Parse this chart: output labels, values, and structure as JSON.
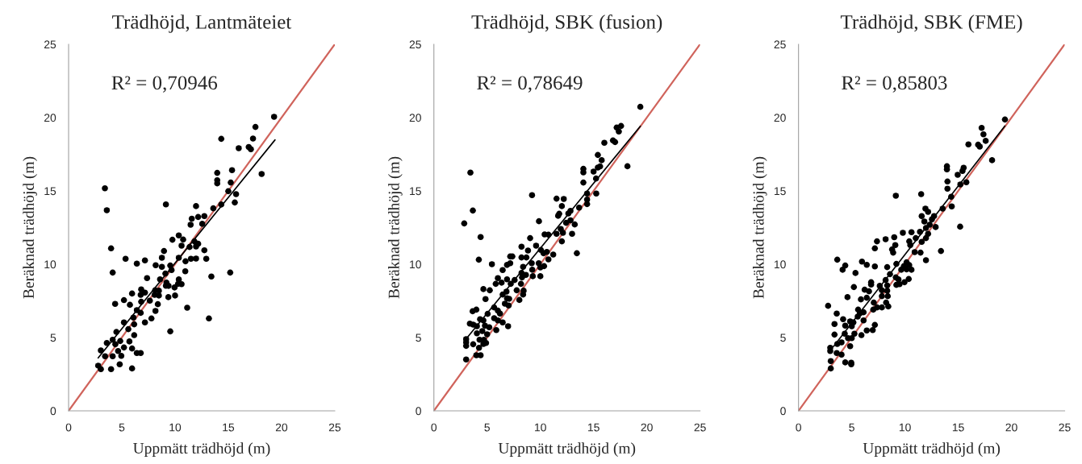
{
  "chart_data": [
    {
      "type": "scatter",
      "title": "Trädhöjd, Lantmäteiet",
      "xlabel": "Uppmätt trädhöjd (m)",
      "ylabel": "Beräknad trädhöjd (m)",
      "annotations": [
        "R² = 0,70946"
      ],
      "xlim": [
        0,
        25
      ],
      "ylim": [
        0,
        25
      ],
      "xticks": [
        0,
        5,
        10,
        15,
        20,
        25
      ],
      "yticks": [
        0,
        5,
        10,
        15,
        20,
        25
      ],
      "grid": false,
      "legend": false,
      "series": [
        {
          "marker": "circle",
          "color": "#000000",
          "x": [
            19.3,
            17.55,
            14.34,
            17.32,
            15.98,
            16.92,
            17.12,
            18.13,
            13.96,
            13.96,
            13.96,
            15.35,
            15.23,
            15.0,
            15.73,
            15.61,
            14.34,
            13.59,
            3.41,
            3.59,
            9.14,
            11.97,
            11.57,
            12.17,
            12.75,
            11.46,
            12.55,
            9.75,
            10.35,
            10.76,
            10.61,
            11.36,
            11.97,
            12.17,
            11.82,
            12.75,
            3.99,
            8.96,
            8.76,
            10.35,
            11.49,
            11.97,
            12.93,
            5.35,
            6.41,
            7.17,
            8.18,
            8.76,
            9.55,
            10.98,
            10.96,
            9.67,
            9.09,
            4.14,
            7.37,
            8.59,
            13.41,
            15.18,
            9.19,
            10.35,
            10.28,
            10.61,
            9.14,
            9.39,
            9.95,
            10.0,
            6.82,
            7.17,
            8.13,
            8.48,
            8.08,
            8.48,
            6.77,
            5.96,
            9.37,
            7.63,
            8.38,
            5.2,
            5.76,
            4.37,
            6.82,
            11.14,
            6.41,
            6.77,
            8.16,
            6.09,
            7.17,
            7.78,
            13.18,
            5.2,
            5.61,
            6.16,
            4.49,
            9.55,
            4.14,
            3.59,
            4.39,
            4.85,
            5.71,
            6.16,
            3.03,
            4.65,
            5.2,
            5.96,
            6.41,
            6.77,
            3.43,
            4.14,
            4.95,
            2.78,
            3.03,
            3.99,
            4.8,
            5.96
          ],
          "values": [
            20.05,
            19.36,
            18.55,
            18.57,
            17.91,
            17.99,
            17.84,
            16.15,
            16.23,
            15.73,
            15.51,
            16.41,
            15.57,
            14.98,
            14.78,
            14.21,
            14.07,
            13.81,
            15.18,
            13.68,
            14.08,
            13.96,
            13.1,
            13.22,
            13.28,
            12.69,
            12.75,
            11.67,
            11.96,
            11.68,
            11.26,
            11.17,
            11.21,
            11.39,
            11.56,
            10.95,
            11.08,
            10.9,
            10.44,
            10.44,
            10.37,
            10.38,
            10.37,
            10.37,
            10.04,
            10.26,
            9.93,
            9.82,
            9.91,
            10.2,
            9.52,
            9.6,
            9.36,
            9.43,
            9.05,
            8.97,
            9.16,
            9.43,
            8.74,
            8.96,
            8.66,
            8.64,
            8.53,
            8.52,
            8.41,
            7.86,
            8.28,
            8.06,
            8.22,
            8.19,
            7.91,
            7.86,
            7.91,
            8.0,
            7.75,
            7.51,
            7.27,
            7.55,
            7.23,
            7.29,
            7.44,
            7.03,
            6.87,
            6.68,
            6.81,
            6.36,
            6.03,
            6.3,
            6.3,
            6.03,
            5.57,
            5.9,
            5.38,
            5.42,
            4.85,
            4.63,
            4.54,
            4.76,
            4.73,
            5.16,
            4.12,
            4.08,
            4.32,
            4.25,
            3.94,
            3.94,
            3.72,
            3.72,
            3.75,
            3.08,
            2.84,
            2.84,
            3.17,
            2.89
          ]
        },
        {
          "type": "line",
          "color": "#000000",
          "line_style": "solid",
          "x": [
            2.78,
            19.39
          ],
          "values": [
            3.61,
            18.48
          ]
        },
        {
          "type": "line",
          "color": "#d0645c",
          "line_style": "solid",
          "x": [
            0,
            25
          ],
          "values": [
            0,
            25
          ]
        }
      ]
    },
    {
      "type": "scatter",
      "title": "Trädhöjd, SBK (fusion)",
      "xlabel": "Uppmätt trädhöjd (m)",
      "ylabel": "Beräknad trädhöjd (m)",
      "annotations": [
        "R² = 0,78649"
      ],
      "xlim": [
        0,
        25
      ],
      "ylim": [
        0,
        25
      ],
      "xticks": [
        0,
        5,
        10,
        15,
        20,
        25
      ],
      "yticks": [
        0,
        5,
        10,
        15,
        20,
        25
      ],
      "grid": false,
      "legend": false,
      "series": [
        {
          "marker": "circle",
          "color": "#000000",
          "x": [
            19.39,
            17.17,
            17.58,
            17.37,
            16.01,
            16.82,
            17.02,
            18.18,
            15.4,
            15.76,
            15.4,
            15.61,
            15.0,
            14.04,
            14.04,
            14.04,
            15.23,
            15.25,
            14.39,
            14.39,
            14.39,
            13.64,
            3.43,
            3.66,
            2.85,
            4.39,
            4.22,
            9.22,
            11.52,
            12.2,
            12.02,
            11.77,
            11.67,
            12.63,
            12.83,
            12.42,
            12.83,
            13.23,
            9.87,
            10.4,
            10.76,
            11.52,
            11.92,
            12.12,
            12.98,
            12.02,
            13.43,
            9.04,
            8.23,
            8.84,
            9.6,
            10.05,
            10.3,
            10.61,
            11.21,
            10.76,
            8.23,
            8.69,
            7.17,
            7.37,
            7.17,
            6.87,
            5.45,
            8.38,
            9.19,
            9.85,
            10.35,
            10.0,
            9.24,
            8.23,
            8.64,
            9.29,
            10.0,
            8.28,
            6.46,
            6.01,
            6.87,
            5.81,
            6.36,
            7.22,
            7.58,
            8.18,
            4.65,
            5.25,
            6.82,
            7.78,
            8.43,
            6.46,
            8.38,
            4.85,
            6.87,
            7.07,
            8.03,
            6.67,
            5.66,
            7.02,
            3.64,
            3.99,
            5.05,
            6.01,
            6.21,
            4.34,
            4.65,
            5.66,
            6.01,
            6.46,
            3.38,
            3.69,
            4.04,
            4.8,
            5.2,
            5.86,
            6.97,
            4.55,
            4.04,
            5.0,
            3.03,
            3.03,
            3.03,
            3.69,
            4.29,
            4.7,
            4.9,
            4.65,
            4.24,
            3.99,
            4.39,
            3.03
          ],
          "values": [
            20.73,
            19.32,
            19.43,
            19.05,
            18.28,
            18.44,
            18.33,
            16.68,
            17.45,
            17.09,
            16.59,
            16.67,
            16.32,
            16.5,
            16.26,
            15.57,
            15.84,
            14.82,
            14.82,
            14.41,
            14.1,
            13.86,
            16.25,
            13.66,
            12.78,
            11.85,
            10.31,
            14.71,
            14.47,
            14.45,
            13.96,
            13.44,
            13.3,
            13.46,
            13.64,
            12.82,
            12.99,
            12.71,
            12.93,
            12.03,
            12.01,
            12.07,
            12.4,
            12.14,
            12.07,
            11.56,
            10.75,
            11.78,
            11.19,
            10.93,
            11.26,
            10.97,
            10.75,
            10.84,
            10.66,
            10.33,
            10.46,
            10.46,
            10.53,
            10.53,
            10.07,
            9.95,
            10.0,
            9.82,
            10.07,
            10.07,
            9.87,
            9.78,
            9.62,
            9.4,
            9.27,
            9.18,
            9.18,
            9.1,
            9.6,
            9.05,
            8.97,
            8.66,
            8.74,
            8.66,
            8.92,
            8.66,
            8.3,
            8.22,
            8.13,
            8.22,
            8.19,
            7.93,
            7.93,
            7.62,
            7.67,
            7.64,
            7.56,
            7.31,
            7.05,
            7.18,
            6.79,
            6.9,
            6.61,
            6.83,
            6.63,
            6.25,
            6.17,
            6.32,
            6.17,
            6.03,
            5.95,
            5.88,
            5.77,
            5.81,
            5.7,
            5.51,
            5.77,
            5.44,
            5.29,
            5.22,
            4.89,
            4.67,
            4.43,
            4.54,
            4.85,
            4.85,
            4.63,
            4.56,
            4.3,
            3.79,
            3.79,
            3.5
          ]
        },
        {
          "type": "line",
          "color": "#000000",
          "line_style": "solid",
          "x": [
            3.18,
            19.39
          ],
          "values": [
            5.04,
            19.41
          ]
        },
        {
          "type": "line",
          "color": "#d0645c",
          "line_style": "solid",
          "x": [
            0,
            25
          ],
          "values": [
            0,
            25
          ]
        }
      ]
    },
    {
      "type": "scatter",
      "title": "Trädhöjd, SBK (FME)",
      "xlabel": "Uppmätt trädhöjd (m)",
      "ylabel": "Beräknad trädhöjd (m)",
      "annotations": [
        "R² = 0,85803"
      ],
      "xlim": [
        0,
        25
      ],
      "ylim": [
        0,
        25
      ],
      "xticks": [
        0,
        5,
        10,
        15,
        20,
        25
      ],
      "yticks": [
        0,
        5,
        10,
        15,
        20,
        25
      ],
      "grid": false,
      "legend": false,
      "series": [
        {
          "marker": "circle",
          "color": "#000000",
          "x": [
            19.39,
            17.2,
            17.37,
            17.58,
            16.87,
            17.02,
            15.96,
            18.18,
            13.94,
            13.94,
            15.51,
            15.4,
            14.95,
            15.2,
            15.76,
            13.99,
            13.99,
            14.34,
            14.39,
            13.54,
            15.18,
            9.14,
            11.52,
            11.92,
            12.17,
            11.57,
            12.73,
            12.53,
            11.82,
            12.88,
            12.32,
            11.97,
            11.41,
            12.17,
            11.97,
            11.57,
            10.61,
            9.8,
            11.01,
            10.4,
            10.5,
            8.99,
            8.18,
            7.37,
            7.17,
            9.09,
            8.79,
            8.89,
            10.91,
            11.46,
            13.38,
            11.97,
            3.64,
            4.39,
            4.14,
            5.35,
            5.96,
            6.41,
            7.17,
            8.33,
            9.19,
            10.15,
            9.9,
            10.4,
            10.15,
            10.61,
            9.65,
            8.59,
            9.14,
            9.39,
            9.19,
            9.49,
            9.95,
            10.35,
            8.18,
            8.33,
            7.63,
            6.82,
            6.82,
            5.2,
            6.21,
            6.62,
            7.83,
            8.33,
            8.38,
            7.83,
            4.6,
            5.86,
            6.41,
            7.07,
            8.23,
            7.38,
            7.83,
            8.43,
            2.78,
            5.6,
            3.59,
            7.02,
            5.76,
            6.11,
            5.56,
            6.11,
            4.19,
            4.85,
            5.15,
            3.38,
            4.39,
            5.0,
            7.17,
            6.97,
            6.41,
            5.25,
            5.91,
            3.38,
            4.34,
            4.65,
            5.0,
            4.04,
            3.64,
            2.98,
            2.98,
            3.59,
            4.04,
            4.85,
            3.03,
            4.39,
            4.95,
            4.95,
            3.03
          ],
          "values": [
            19.87,
            19.3,
            18.86,
            18.41,
            18.15,
            18.02,
            18.17,
            17.09,
            16.68,
            16.47,
            16.58,
            16.36,
            16.1,
            15.44,
            15.59,
            15.64,
            15.15,
            14.6,
            13.94,
            13.79,
            12.56,
            14.67,
            14.78,
            13.79,
            13.57,
            13.28,
            13.28,
            13.06,
            12.91,
            12.53,
            12.69,
            12.47,
            12.21,
            12.07,
            11.78,
            11.52,
            12.18,
            12.14,
            11.78,
            11.56,
            11.3,
            11.84,
            11.7,
            11.56,
            11.08,
            11.3,
            11.01,
            10.79,
            10.82,
            10.79,
            10.9,
            10.27,
            10.31,
            9.91,
            9.62,
            9.4,
            10.18,
            9.96,
            9.85,
            9.8,
            10.02,
            10.13,
            9.87,
            9.94,
            9.65,
            9.62,
            9.62,
            9.32,
            9.1,
            8.96,
            8.59,
            8.64,
            8.77,
            8.99,
            8.92,
            8.55,
            8.52,
            8.77,
            8.61,
            8.44,
            8.26,
            8.15,
            8.22,
            8.19,
            7.82,
            7.82,
            7.75,
            7.6,
            7.71,
            7.38,
            7.38,
            7.05,
            7.05,
            7.12,
            7.16,
            6.9,
            6.63,
            6.9,
            6.65,
            6.72,
            6.43,
            6.17,
            6.25,
            6.1,
            6.03,
            5.92,
            5.81,
            5.77,
            5.86,
            5.51,
            5.48,
            5.26,
            5.16,
            5.2,
            5.26,
            4.96,
            4.96,
            4.67,
            4.56,
            4.3,
            4.08,
            3.94,
            3.83,
            4.41,
            3.39,
            3.3,
            3.28,
            3.17,
            2.89
          ]
        },
        {
          "type": "line",
          "color": "#000000",
          "line_style": "solid",
          "x": [
            3.28,
            19.39
          ],
          "values": [
            4.38,
            19.43
          ]
        },
        {
          "type": "line",
          "color": "#d0645c",
          "line_style": "solid",
          "x": [
            0,
            25
          ],
          "values": [
            0,
            25
          ]
        }
      ]
    }
  ]
}
